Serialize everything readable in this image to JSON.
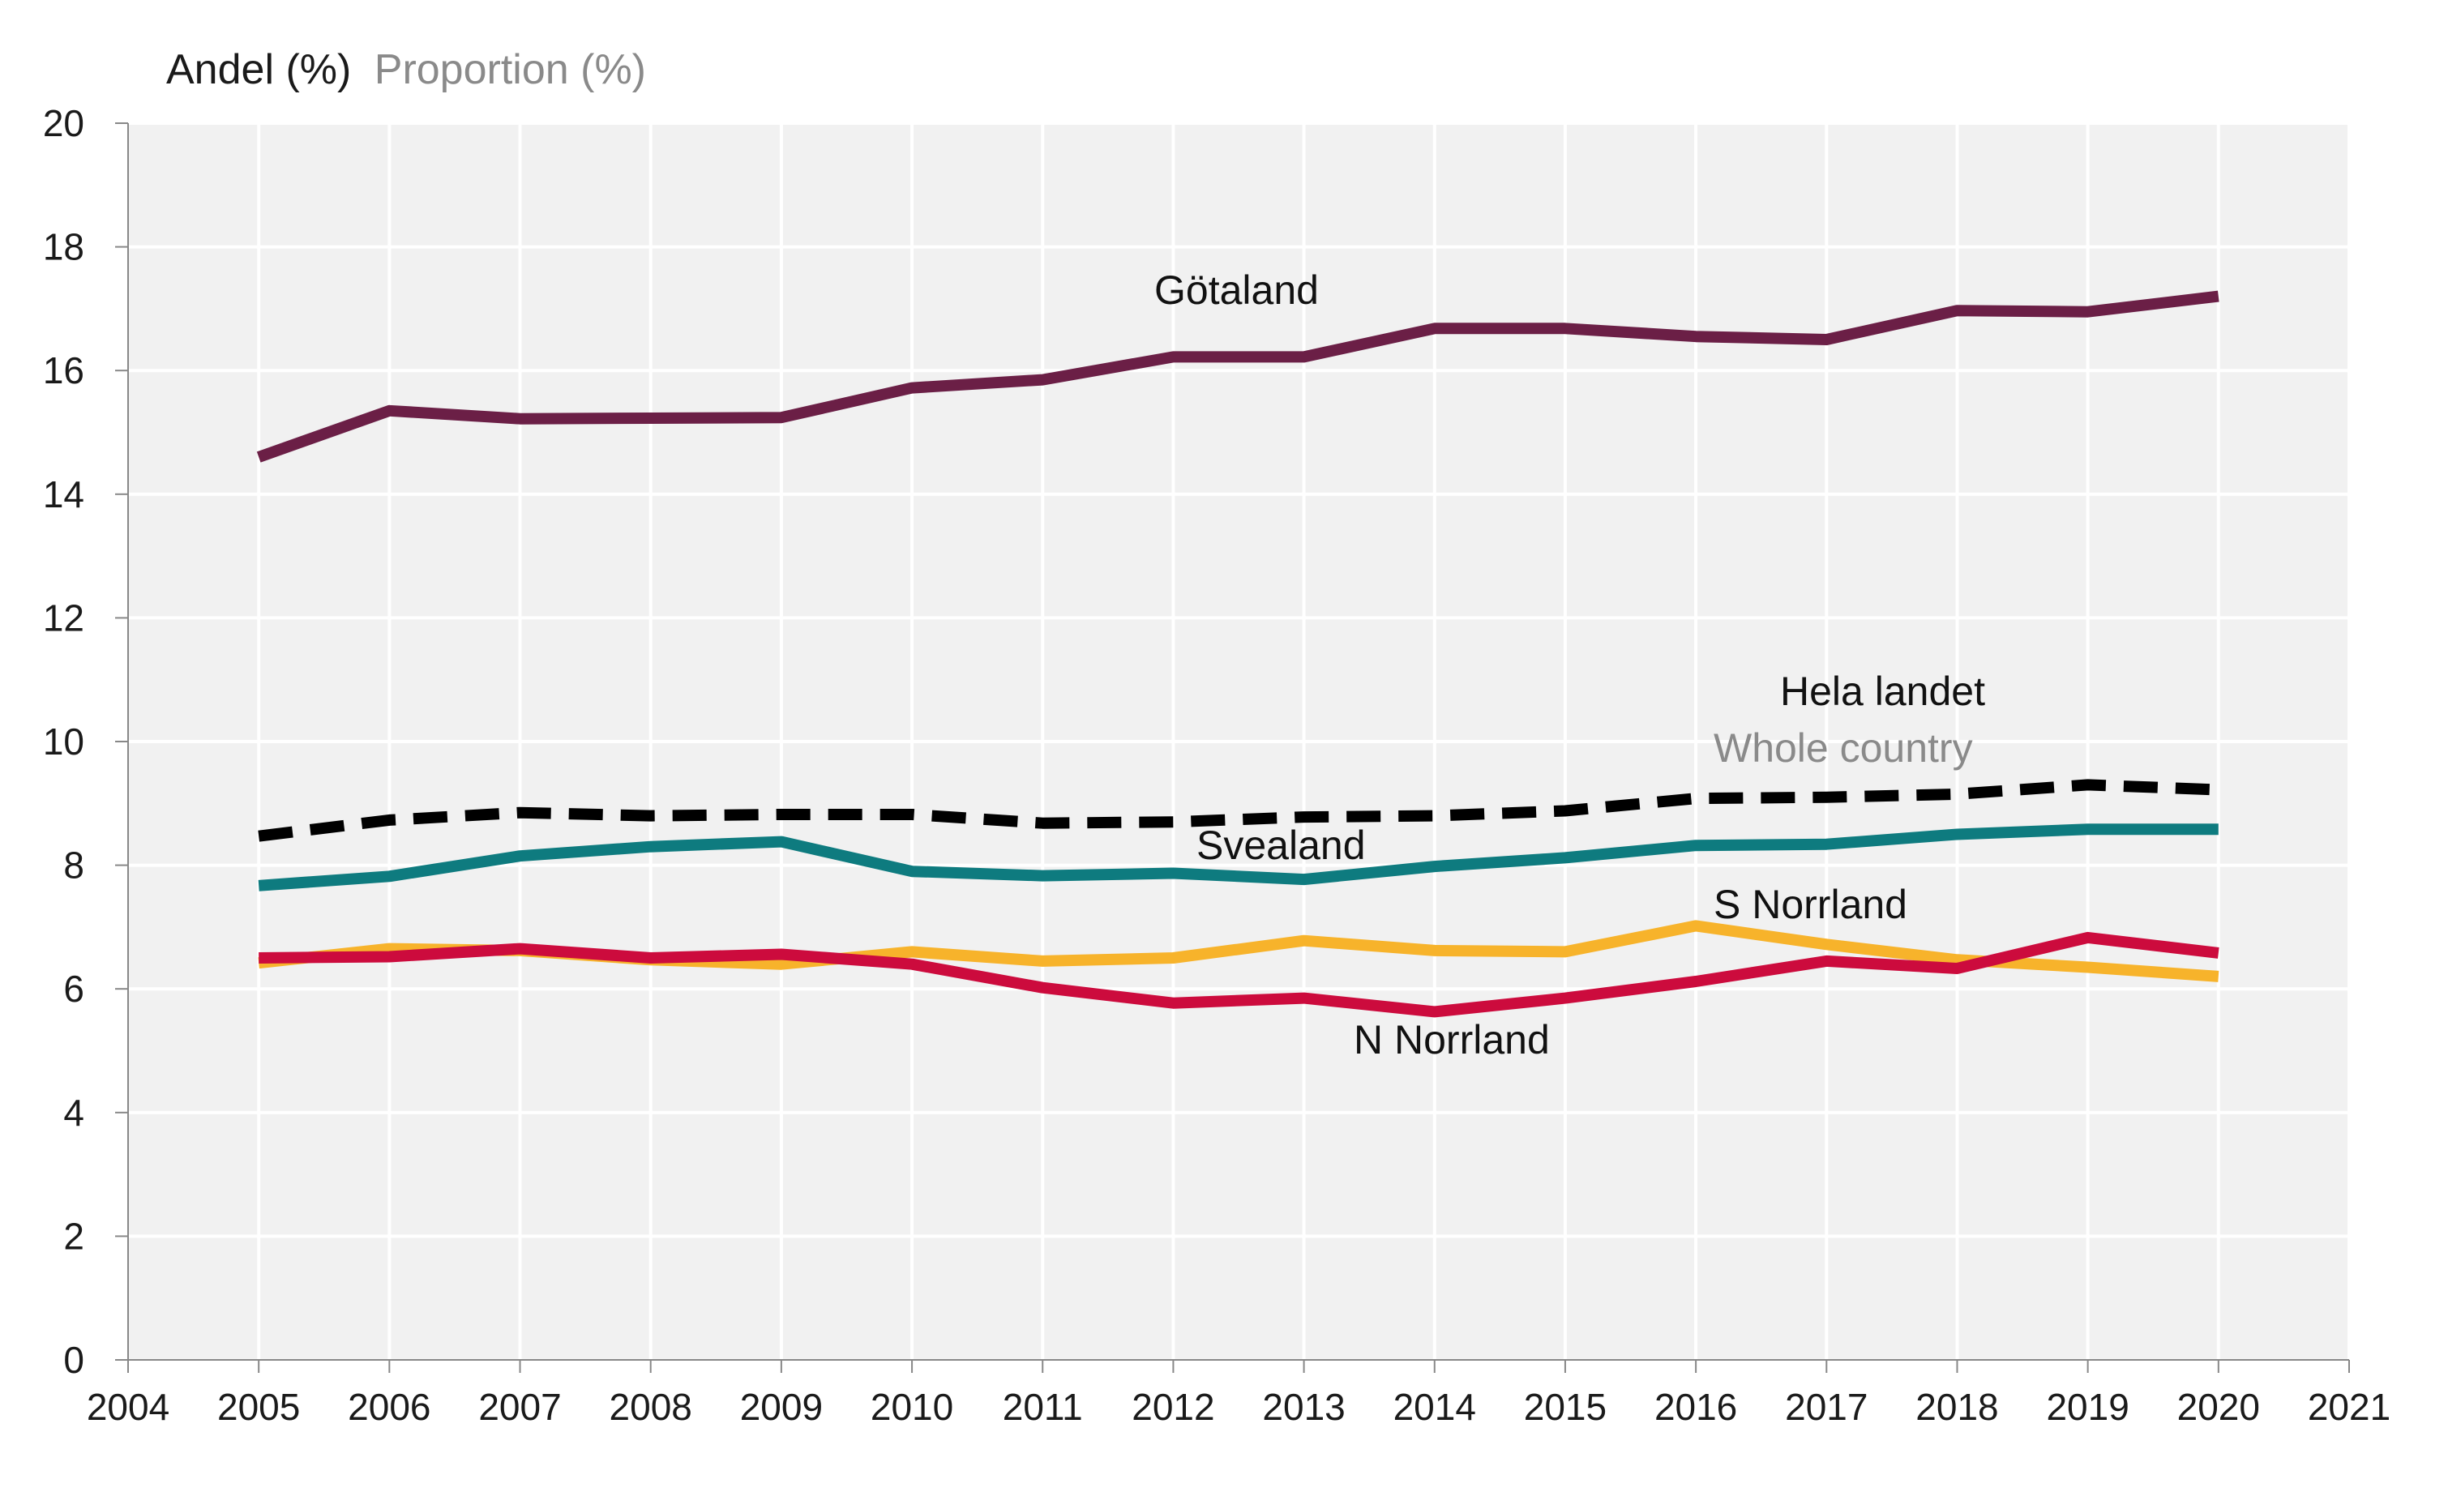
{
  "chart_data": {
    "type": "line",
    "ylabel_primary": "Andel (%)",
    "ylabel_secondary": "Proportion (%)",
    "xlim": [
      2004,
      2021
    ],
    "ylim": [
      0,
      20
    ],
    "x_ticks": [
      2004,
      2005,
      2006,
      2007,
      2008,
      2009,
      2010,
      2011,
      2012,
      2013,
      2014,
      2015,
      2016,
      2017,
      2018,
      2019,
      2020,
      2021
    ],
    "y_ticks": [
      0,
      2,
      4,
      6,
      8,
      10,
      12,
      14,
      16,
      18,
      20
    ],
    "grid": true,
    "legend": "none",
    "x": [
      2005,
      2006,
      2007,
      2008,
      2009,
      2010,
      2011,
      2012,
      2013,
      2014,
      2015,
      2016,
      2017,
      2018,
      2019,
      2020
    ],
    "series": [
      {
        "name": "Götaland",
        "color": "#6b1f46",
        "style": "solid",
        "values": [
          14.6,
          15.35,
          15.22,
          15.23,
          15.24,
          15.72,
          15.85,
          16.22,
          16.22,
          16.68,
          16.68,
          16.55,
          16.5,
          16.97,
          16.95,
          17.2
        ]
      },
      {
        "name": "Hela landet",
        "name_secondary": "Whole country",
        "color": "#000000",
        "style": "dashed",
        "values": [
          8.47,
          8.73,
          8.85,
          8.8,
          8.82,
          8.82,
          8.68,
          8.7,
          8.78,
          8.8,
          8.88,
          9.08,
          9.1,
          9.15,
          9.3,
          9.22
        ]
      },
      {
        "name": "Svealand",
        "color": "#0e7b7f",
        "style": "solid",
        "values": [
          7.67,
          7.82,
          8.15,
          8.3,
          8.38,
          7.9,
          7.83,
          7.87,
          7.77,
          7.98,
          8.12,
          8.32,
          8.34,
          8.5,
          8.58,
          8.58
        ]
      },
      {
        "name": "S Norrland",
        "color": "#f7b32b",
        "style": "solid",
        "values": [
          6.42,
          6.65,
          6.62,
          6.47,
          6.4,
          6.6,
          6.45,
          6.5,
          6.78,
          6.62,
          6.6,
          7.02,
          6.72,
          6.47,
          6.35,
          6.2
        ]
      },
      {
        "name": "N Norrland",
        "color": "#cc0b3d",
        "style": "solid",
        "values": [
          6.5,
          6.52,
          6.65,
          6.5,
          6.56,
          6.4,
          6.02,
          5.77,
          5.85,
          5.63,
          5.85,
          6.12,
          6.45,
          6.33,
          6.83,
          6.58
        ]
      }
    ]
  }
}
